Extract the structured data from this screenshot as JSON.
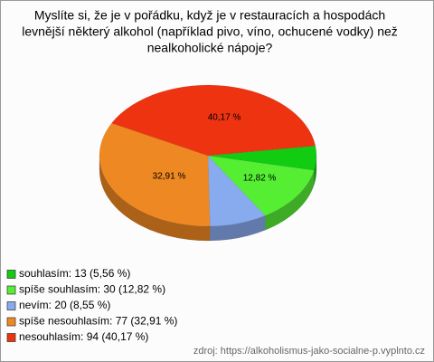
{
  "chart_data": {
    "type": "pie",
    "title_lines": [
      "Myslíte si, že je v pořádku, když je v restauracích a hospodách",
      "levnější některý alkohol (například pivo, víno, ochucené vodky) než",
      "nealkoholické nápoje?"
    ],
    "categories": [
      "souhlasím: 13 (5,56 %)",
      "spíše souhlasím: 30 (12,82 %)",
      "nevím: 20 (8,55 %)",
      "spíše nesouhlasím: 77 (32,91 %)",
      "nesouhlasím: 94 (40,17 %)"
    ],
    "values": [
      5.56,
      12.82,
      8.55,
      32.91,
      40.17
    ],
    "value_labels": [
      null,
      "12,82 %",
      null,
      "32,91 %",
      "40,17 %"
    ],
    "colors": [
      "#11cc11",
      "#55ee33",
      "#88aaee",
      "#ee8822",
      "#ee3311"
    ],
    "source": "zdroj: https://alkoholismus-jako-socialne-p.vyplnto.cz"
  }
}
